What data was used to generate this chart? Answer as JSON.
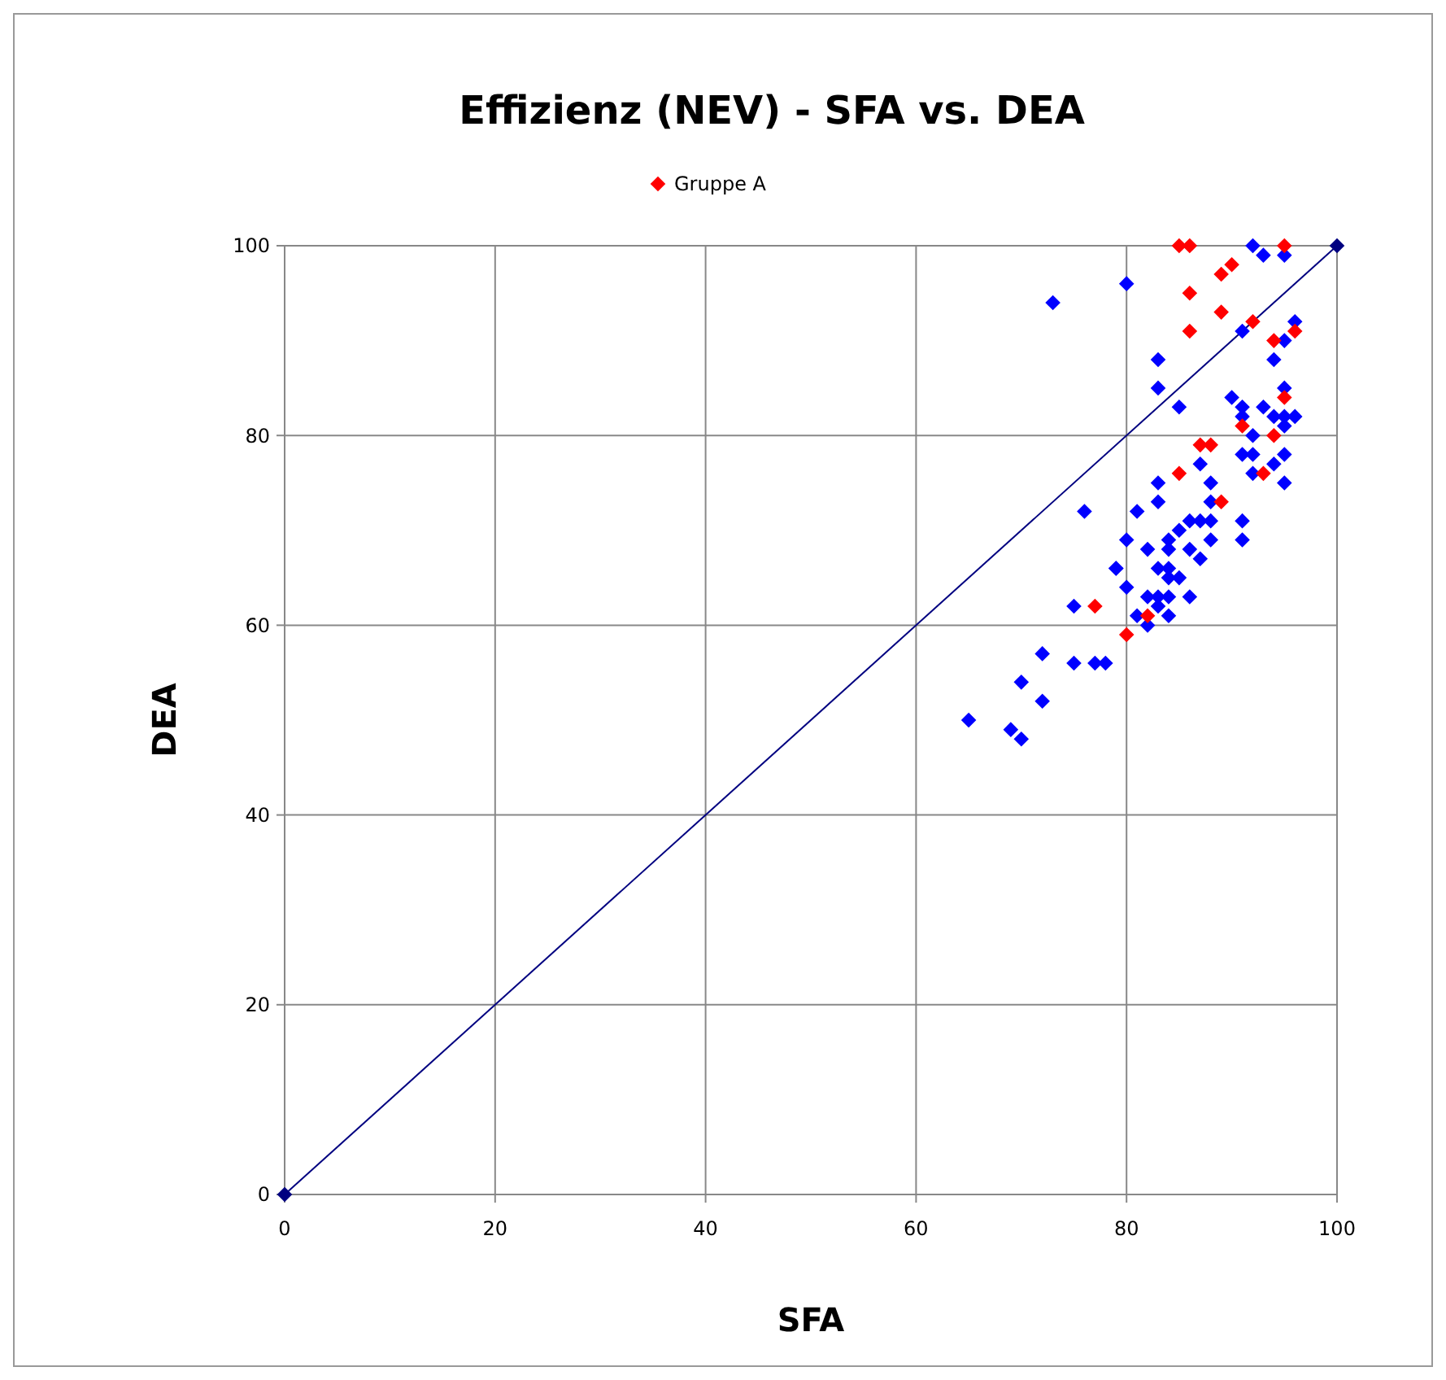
{
  "chart_data": {
    "type": "scatter",
    "title": "Effizienz (NEV) - SFA vs. DEA",
    "xlabel": "SFA",
    "ylabel": "DEA",
    "xlim": [
      0,
      100
    ],
    "ylim": [
      0,
      100
    ],
    "xticks": [
      0,
      20,
      40,
      60,
      80,
      100
    ],
    "yticks": [
      0,
      20,
      40,
      60,
      80,
      100
    ],
    "grid": true,
    "legend": "top",
    "marker": "diamond",
    "series": [
      {
        "type": "line",
        "color": "#000080",
        "x": [
          0,
          100
        ],
        "values": [
          0,
          100
        ]
      },
      {
        "color": "#0000ff",
        "x": [
          92,
          93,
          95,
          73,
          80,
          83,
          83,
          85,
          91,
          96,
          95,
          94,
          95,
          90,
          91,
          93,
          91,
          94,
          95,
          96,
          92,
          95,
          87,
          91,
          92,
          95,
          94,
          92,
          95,
          83,
          88,
          83,
          88,
          81,
          88,
          87,
          86,
          85,
          91,
          91,
          88,
          84,
          84,
          82,
          80,
          86,
          87,
          79,
          83,
          84,
          84,
          85,
          80,
          82,
          83,
          84,
          86,
          83,
          84,
          81,
          82,
          76,
          79,
          75,
          72,
          75,
          77,
          78,
          70,
          72,
          65,
          69,
          70
        ],
        "values": [
          100,
          99,
          99,
          94,
          96,
          88,
          85,
          83,
          91,
          92,
          90,
          88,
          85,
          84,
          83,
          83,
          82,
          82,
          82,
          82,
          80,
          81,
          77,
          78,
          78,
          78,
          77,
          76,
          75,
          75,
          75,
          73,
          73,
          72,
          71,
          71,
          71,
          70,
          71,
          69,
          69,
          69,
          68,
          68,
          69,
          68,
          67,
          66,
          66,
          66,
          65,
          65,
          64,
          63,
          63,
          63,
          63,
          62,
          61,
          61,
          60,
          72,
          66,
          62,
          57,
          56,
          56,
          56,
          54,
          52,
          50,
          49,
          48
        ]
      },
      {
        "name": "Gruppe A",
        "color": "#ff0000",
        "x": [
          85,
          86,
          95,
          90,
          89,
          86,
          89,
          86,
          92,
          96,
          94,
          95,
          91,
          94,
          87,
          88,
          85,
          93,
          89,
          77,
          82,
          80
        ],
        "values": [
          100,
          100,
          100,
          98,
          97,
          95,
          93,
          91,
          92,
          91,
          90,
          84,
          81,
          80,
          79,
          79,
          76,
          76,
          73,
          62,
          61,
          59
        ]
      }
    ]
  }
}
